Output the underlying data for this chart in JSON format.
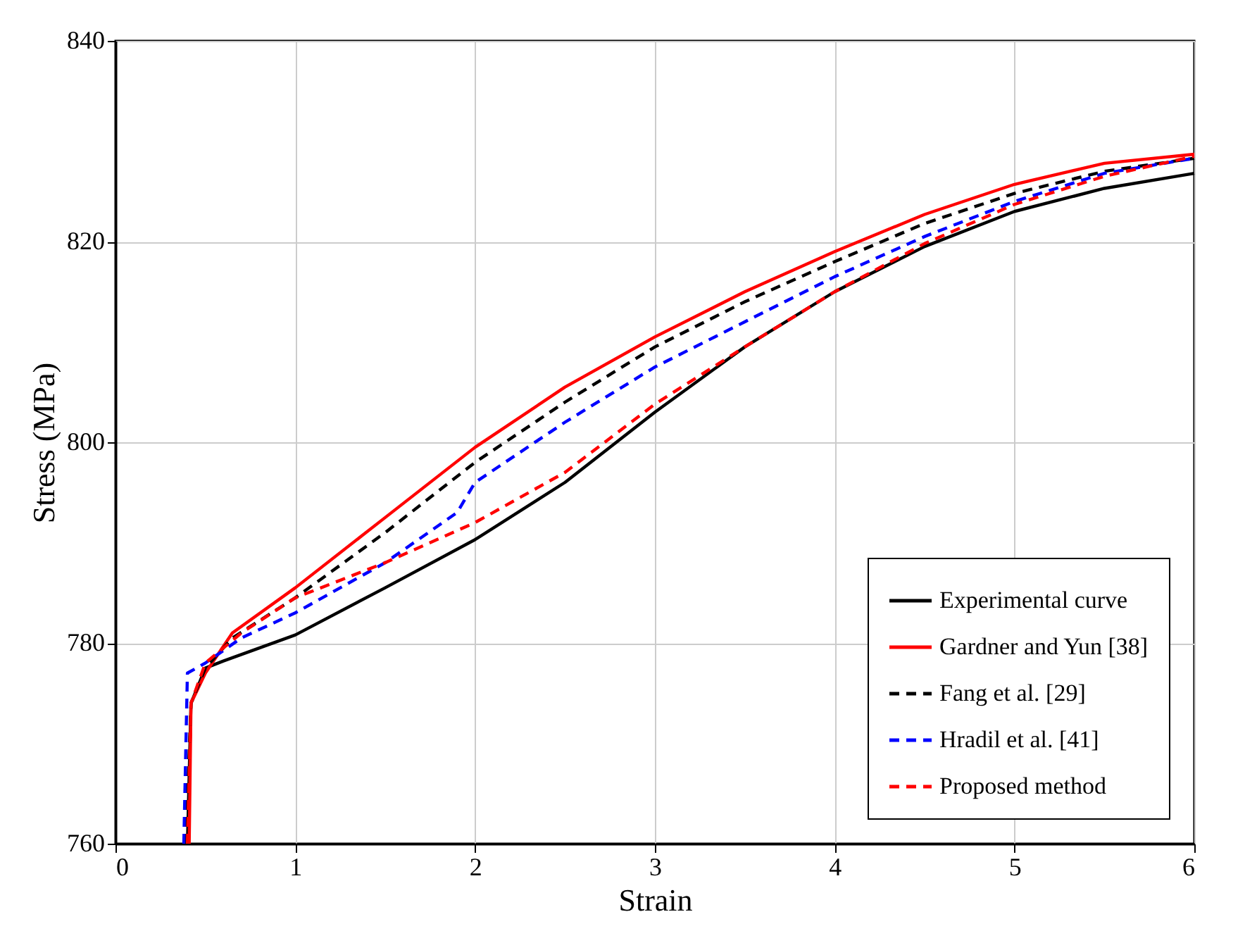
{
  "chart_data": {
    "type": "line",
    "xlabel": "Strain",
    "ylabel": "Stress (MPa)",
    "xlim": [
      0,
      6
    ],
    "ylim": [
      760,
      840
    ],
    "xticks": [
      0,
      1,
      2,
      3,
      4,
      5,
      6
    ],
    "yticks": [
      760,
      780,
      800,
      820,
      840
    ],
    "grid": true,
    "legend": "bottom right",
    "marker": "none",
    "series": [
      {
        "name": "Experimental curve",
        "color": "#000000",
        "line_style": "solid",
        "x": [
          0.4,
          0.42,
          0.5,
          0.6,
          1,
          1.5,
          2,
          2.5,
          3,
          3.5,
          4,
          4.5,
          5,
          5.5,
          6
        ],
        "values": [
          760,
          774,
          777.5,
          778.2,
          780.8,
          785.5,
          790.3,
          796,
          803,
          809.5,
          815,
          819.5,
          823,
          825.3,
          826.8
        ]
      },
      {
        "name": "Gardner and Yun [38]",
        "color": "#ff0000",
        "line_style": "solid",
        "x": [
          0.41,
          0.42,
          0.5,
          0.65,
          1,
          1.5,
          2,
          2.5,
          3,
          3.5,
          4,
          4.5,
          5,
          5.5,
          6
        ],
        "values": [
          760,
          774,
          777,
          781,
          785.5,
          792.5,
          799.5,
          805.5,
          810.5,
          815,
          819,
          822.7,
          825.7,
          827.8,
          828.7
        ]
      },
      {
        "name": "Fang et al. [29]",
        "color": "#000000",
        "line_style": "dashed",
        "x": [
          0.39,
          0.42,
          0.5,
          0.65,
          1,
          1.5,
          2,
          2.5,
          3,
          3.5,
          4,
          4.5,
          5,
          5.5,
          6
        ],
        "values": [
          760,
          774,
          777.5,
          780.5,
          784.5,
          791,
          798,
          804,
          809.5,
          814,
          818,
          821.8,
          824.8,
          827,
          828.3
        ]
      },
      {
        "name": "Hradil et al. [41]",
        "color": "#0000ff",
        "line_style": "dashed",
        "x": [
          0.38,
          0.4,
          0.5,
          0.7,
          1,
          1.5,
          1.9,
          2,
          2.5,
          3,
          3.5,
          4,
          4.5,
          5,
          5.5,
          6
        ],
        "values": [
          760,
          777,
          778,
          780.5,
          783,
          788,
          793,
          796,
          802,
          807.5,
          812,
          816.5,
          820.5,
          824,
          826.8,
          828.3
        ]
      },
      {
        "name": "Proposed method",
        "color": "#ff0000",
        "line_style": "dashed",
        "x": [
          0.4,
          0.42,
          0.5,
          0.7,
          1,
          1.5,
          2,
          2.5,
          3,
          3.5,
          4,
          4.5,
          5,
          5.5,
          6
        ],
        "values": [
          760,
          774,
          778,
          781,
          784.5,
          788,
          792,
          797,
          803.8,
          809.5,
          815,
          819.8,
          823.7,
          826.5,
          828.5
        ]
      }
    ]
  }
}
